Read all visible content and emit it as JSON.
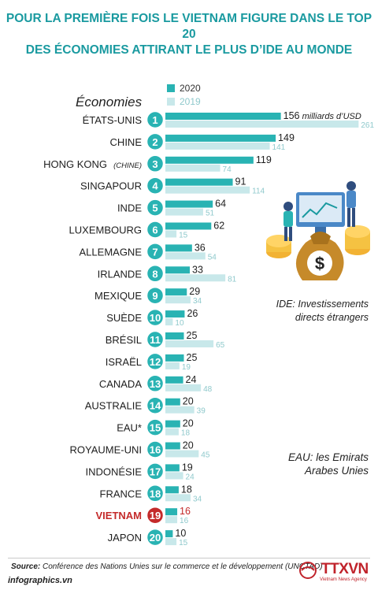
{
  "title": {
    "line1": "POUR LA PREMIÈRE FOIS LE VIETNAM FIGURE DANS LE TOP 20",
    "line2": "DES ÉCONOMIES ATTIRANT LE PLUS D’IDE AU MONDE"
  },
  "legend": {
    "y2020": "2020",
    "y2019": "2019"
  },
  "category_header": "Économies",
  "unit_label": "milliards d’USD",
  "colors": {
    "bar2020": "#29b3b3",
    "bar2019": "#c8e8ea",
    "rank_circle": "#29b3b3",
    "highlight": "#c42a2a",
    "title": "#1a9aa0"
  },
  "notes": {
    "ide_line1": "IDE: Investissements",
    "ide_line2": "directs étrangers",
    "eau_line1": "EAU: les Emirats",
    "eau_line2": "Arabes Unies"
  },
  "footer": {
    "source_label": "Source:",
    "source_text": "Conférence des Nations Unies sur le commerce et le développement (UNCTAD)",
    "site": "infographics.vn",
    "logo_text": "TTXVN",
    "logo_sub": "Vietnam News Agency"
  },
  "chart_data": {
    "type": "bar",
    "orientation": "horizontal",
    "categories": [
      "ÉTATS-UNIS",
      "CHINE",
      "HONG KONG",
      "SINGAPOUR",
      "INDE",
      "LUXEMBOURG",
      "ALLEMAGNE",
      "IRLANDE",
      "MEXIQUE",
      "SUÈDE",
      "BRÉSIL",
      "ISRAËL",
      "CANADA",
      "AUSTRALIE",
      "EAU*",
      "ROYAUME-UNI",
      "INDONÉSIE",
      "FRANCE",
      "VIETNAM",
      "JAPON"
    ],
    "category_suffix": {
      "HONG KONG": "(CHINE)"
    },
    "ranks": [
      1,
      2,
      3,
      4,
      5,
      6,
      7,
      8,
      9,
      10,
      11,
      12,
      13,
      14,
      15,
      16,
      17,
      18,
      19,
      20
    ],
    "highlight_category": "VIETNAM",
    "series": [
      {
        "name": "2020",
        "values": [
          156,
          149,
          119,
          91,
          64,
          62,
          36,
          33,
          29,
          26,
          25,
          25,
          24,
          20,
          20,
          20,
          19,
          18,
          16,
          10
        ]
      },
      {
        "name": "2019",
        "values": [
          261,
          141,
          74,
          114,
          51,
          15,
          54,
          81,
          34,
          10,
          65,
          19,
          48,
          39,
          18,
          45,
          24,
          34,
          16,
          15
        ]
      }
    ]
  }
}
